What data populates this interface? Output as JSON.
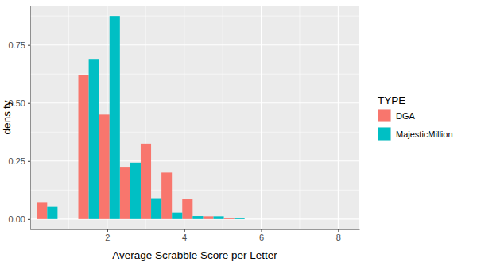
{
  "chart_data": {
    "type": "histogram",
    "xlabel": "Average Scrabble Score per Letter",
    "ylabel": "density",
    "legend_title": "TYPE",
    "legend": "right",
    "grid": true,
    "bins": [
      0.17,
      0.71,
      1.25,
      1.79,
      2.33,
      2.87,
      3.41,
      3.95,
      4.49,
      5.03,
      5.57,
      6.11,
      6.65,
      7.19,
      7.73,
      8.27
    ],
    "series": [
      {
        "name": "DGA",
        "color": "#F8766D",
        "values": [
          0.07,
          0,
          0.62,
          0.45,
          0.225,
          0.325,
          0.2,
          0.085,
          0.012,
          0.006,
          0,
          0,
          0,
          0,
          0
        ]
      },
      {
        "name": "MajesticMillion",
        "color": "#00BFC4",
        "values": [
          0.052,
          0,
          0.69,
          0.875,
          0.243,
          0.09,
          0.028,
          0.013,
          0.012,
          0.004,
          0,
          0,
          0,
          0,
          0
        ]
      }
    ],
    "xlim": [
      0.0,
      8.55
    ],
    "xticks": [
      2,
      4,
      6,
      8
    ],
    "ylim": [
      -0.045,
      0.92
    ],
    "yticks": [
      {
        "value": 0,
        "label": "0.00"
      },
      {
        "value": 0.25,
        "label": "0.25"
      },
      {
        "value": 0.5,
        "label": "0.50"
      },
      {
        "value": 0.75,
        "label": "0.75"
      }
    ]
  }
}
